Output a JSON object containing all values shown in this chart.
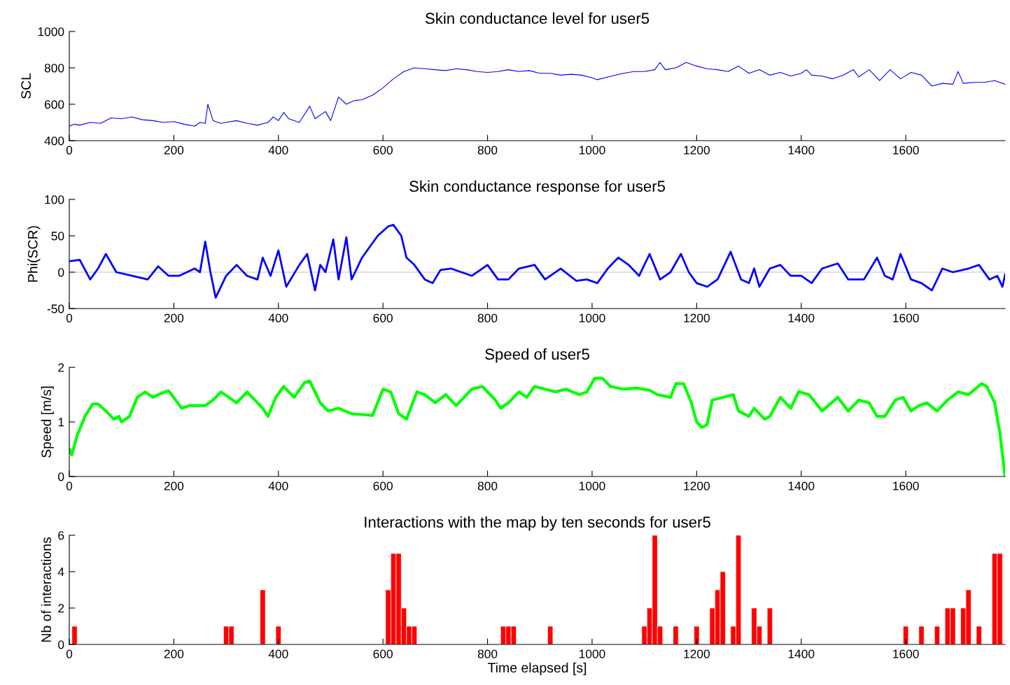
{
  "chart_data": [
    {
      "type": "line",
      "title": "Skin conductance level for user5",
      "ylabel": "SCL",
      "xlim": [
        0,
        1790
      ],
      "xticks": [
        0,
        200,
        400,
        600,
        800,
        1000,
        1200,
        1400,
        1600
      ],
      "ylim": [
        400,
        1000
      ],
      "yticks": [
        400,
        600,
        800,
        1000
      ],
      "grid": false,
      "legend": false,
      "marker": "none",
      "line_style": "solid",
      "series": [
        {
          "color": "#0000ff",
          "x": [
            0,
            10,
            20,
            40,
            60,
            80,
            100,
            120,
            140,
            160,
            180,
            200,
            220,
            240,
            250,
            260,
            265,
            275,
            290,
            300,
            320,
            340,
            360,
            380,
            390,
            400,
            410,
            420,
            440,
            460,
            470,
            490,
            500,
            515,
            530,
            545,
            560,
            580,
            600,
            620,
            640,
            660,
            680,
            700,
            720,
            740,
            760,
            780,
            800,
            820,
            840,
            860,
            880,
            900,
            920,
            940,
            960,
            980,
            1000,
            1010,
            1030,
            1060,
            1080,
            1100,
            1120,
            1130,
            1140,
            1160,
            1180,
            1200,
            1220,
            1240,
            1260,
            1280,
            1300,
            1320,
            1340,
            1360,
            1380,
            1400,
            1410,
            1420,
            1440,
            1460,
            1480,
            1500,
            1510,
            1530,
            1550,
            1570,
            1590,
            1610,
            1630,
            1650,
            1670,
            1690,
            1700,
            1710,
            1730,
            1750,
            1770,
            1790
          ],
          "values": [
            480,
            490,
            485,
            500,
            495,
            525,
            520,
            530,
            515,
            510,
            500,
            505,
            490,
            480,
            500,
            495,
            600,
            510,
            495,
            500,
            510,
            495,
            485,
            500,
            530,
            510,
            555,
            520,
            500,
            590,
            520,
            560,
            510,
            640,
            600,
            620,
            625,
            650,
            690,
            740,
            780,
            800,
            795,
            790,
            785,
            795,
            790,
            780,
            775,
            780,
            790,
            780,
            785,
            770,
            770,
            760,
            765,
            760,
            745,
            735,
            750,
            770,
            780,
            780,
            790,
            830,
            790,
            800,
            830,
            810,
            795,
            790,
            780,
            810,
            770,
            790,
            760,
            775,
            755,
            770,
            790,
            760,
            755,
            740,
            760,
            790,
            750,
            790,
            730,
            790,
            740,
            775,
            760,
            700,
            715,
            710,
            780,
            715,
            720,
            720,
            730,
            710
          ]
        }
      ]
    },
    {
      "type": "line",
      "title": "Skin conductance response for user5",
      "ylabel": "Phi(SCR)",
      "xlim": [
        0,
        1790
      ],
      "xticks": [
        0,
        200,
        400,
        600,
        800,
        1000,
        1200,
        1400,
        1600
      ],
      "ylim": [
        -50,
        100
      ],
      "yticks": [
        -50,
        0,
        50,
        100
      ],
      "grid": false,
      "legend": false,
      "marker": "none",
      "line_style": "solid",
      "ref_lines": [
        {
          "axis": "y",
          "value": 0,
          "color": "#c0c0c0"
        }
      ],
      "series": [
        {
          "color": "#0000ff",
          "x": [
            0,
            20,
            40,
            55,
            70,
            90,
            120,
            150,
            170,
            190,
            210,
            240,
            250,
            260,
            270,
            280,
            300,
            320,
            340,
            360,
            370,
            385,
            400,
            415,
            440,
            455,
            470,
            480,
            490,
            505,
            515,
            530,
            540,
            560,
            570,
            590,
            610,
            620,
            635,
            645,
            660,
            680,
            695,
            710,
            730,
            750,
            770,
            800,
            820,
            840,
            860,
            890,
            910,
            940,
            970,
            990,
            1010,
            1030,
            1050,
            1070,
            1090,
            1110,
            1130,
            1150,
            1170,
            1185,
            1200,
            1220,
            1240,
            1265,
            1285,
            1300,
            1310,
            1320,
            1340,
            1360,
            1380,
            1400,
            1420,
            1440,
            1470,
            1490,
            1520,
            1545,
            1560,
            1575,
            1590,
            1610,
            1630,
            1650,
            1670,
            1690,
            1720,
            1740,
            1760,
            1775,
            1785,
            1790
          ],
          "values": [
            15,
            17,
            -10,
            5,
            25,
            0,
            -5,
            -10,
            8,
            -5,
            -5,
            5,
            0,
            42,
            0,
            -35,
            -5,
            10,
            -5,
            -10,
            20,
            -5,
            30,
            -20,
            10,
            25,
            -25,
            10,
            0,
            45,
            -10,
            48,
            -10,
            20,
            30,
            50,
            63,
            65,
            50,
            20,
            10,
            -10,
            -15,
            3,
            5,
            0,
            -5,
            10,
            -10,
            -10,
            5,
            10,
            -10,
            5,
            -12,
            -10,
            -15,
            5,
            20,
            10,
            -5,
            25,
            -10,
            0,
            25,
            0,
            -15,
            -20,
            -10,
            28,
            -10,
            -15,
            5,
            -20,
            5,
            10,
            -5,
            -5,
            -15,
            5,
            12,
            -10,
            -10,
            20,
            -5,
            -10,
            25,
            -10,
            -15,
            -25,
            5,
            0,
            5,
            10,
            -10,
            -5,
            -20,
            -3
          ]
        }
      ]
    },
    {
      "type": "line",
      "title": "Speed of user5",
      "ylabel": "Speed [m/s]",
      "xlim": [
        0,
        1790
      ],
      "xticks": [
        0,
        200,
        400,
        600,
        800,
        1000,
        1200,
        1400,
        1600
      ],
      "ylim": [
        0,
        2
      ],
      "yticks": [
        0,
        1,
        2
      ],
      "grid": false,
      "legend": false,
      "marker": "none",
      "line_style": "solid",
      "series": [
        {
          "color": "#00ff00",
          "x": [
            0,
            5,
            15,
            30,
            45,
            55,
            70,
            85,
            95,
            100,
            115,
            130,
            145,
            160,
            175,
            190,
            205,
            215,
            230,
            260,
            275,
            290,
            305,
            320,
            340,
            370,
            380,
            395,
            410,
            430,
            450,
            460,
            480,
            495,
            515,
            540,
            580,
            600,
            615,
            630,
            645,
            665,
            680,
            700,
            720,
            740,
            770,
            790,
            815,
            825,
            840,
            860,
            875,
            890,
            910,
            930,
            950,
            975,
            990,
            1005,
            1020,
            1035,
            1060,
            1085,
            1110,
            1125,
            1150,
            1160,
            1175,
            1190,
            1200,
            1210,
            1220,
            1230,
            1250,
            1270,
            1280,
            1300,
            1310,
            1330,
            1340,
            1360,
            1380,
            1395,
            1415,
            1440,
            1470,
            1490,
            1510,
            1530,
            1545,
            1560,
            1580,
            1595,
            1610,
            1625,
            1640,
            1660,
            1680,
            1700,
            1720,
            1745,
            1755,
            1770,
            1780,
            1790
          ],
          "values": [
            0.5,
            0.4,
            0.75,
            1.1,
            1.33,
            1.33,
            1.2,
            1.05,
            1.1,
            1.0,
            1.1,
            1.45,
            1.55,
            1.45,
            1.52,
            1.57,
            1.38,
            1.25,
            1.3,
            1.3,
            1.4,
            1.55,
            1.45,
            1.35,
            1.55,
            1.25,
            1.1,
            1.45,
            1.65,
            1.45,
            1.72,
            1.75,
            1.35,
            1.2,
            1.25,
            1.15,
            1.12,
            1.6,
            1.55,
            1.15,
            1.05,
            1.55,
            1.5,
            1.35,
            1.5,
            1.3,
            1.6,
            1.65,
            1.4,
            1.25,
            1.35,
            1.55,
            1.45,
            1.65,
            1.6,
            1.55,
            1.6,
            1.5,
            1.55,
            1.8,
            1.8,
            1.65,
            1.6,
            1.62,
            1.58,
            1.5,
            1.45,
            1.7,
            1.7,
            1.35,
            1.0,
            0.9,
            0.95,
            1.4,
            1.45,
            1.5,
            1.2,
            1.1,
            1.25,
            1.05,
            1.1,
            1.45,
            1.25,
            1.55,
            1.5,
            1.2,
            1.45,
            1.2,
            1.4,
            1.35,
            1.1,
            1.1,
            1.4,
            1.45,
            1.2,
            1.3,
            1.35,
            1.2,
            1.4,
            1.55,
            1.5,
            1.7,
            1.65,
            1.35,
            0.8,
            0.0
          ]
        }
      ]
    },
    {
      "type": "bar",
      "title": "Interactions with the map by ten seconds for user5",
      "xlabel": "Time elapsed [s]",
      "ylabel": "Nb of interactions",
      "xlim": [
        0,
        1790
      ],
      "xticks": [
        0,
        200,
        400,
        600,
        800,
        1000,
        1200,
        1400,
        1600
      ],
      "ylim": [
        0,
        6
      ],
      "yticks": [
        0,
        2,
        4,
        6
      ],
      "grid": false,
      "legend": false,
      "series": [
        {
          "color": "#ff0000",
          "x": [
            10,
            300,
            310,
            370,
            400,
            610,
            620,
            630,
            640,
            650,
            660,
            830,
            840,
            850,
            920,
            1100,
            1110,
            1120,
            1130,
            1160,
            1200,
            1230,
            1240,
            1250,
            1270,
            1280,
            1310,
            1320,
            1340,
            1600,
            1630,
            1660,
            1680,
            1690,
            1710,
            1720,
            1740,
            1770,
            1780
          ],
          "values": [
            1,
            1,
            1,
            3,
            1,
            3,
            5,
            5,
            2,
            1,
            1,
            1,
            1,
            1,
            1,
            1,
            2,
            6,
            1,
            1,
            1,
            2,
            3,
            4,
            1,
            6,
            2,
            1,
            2,
            1,
            1,
            1,
            2,
            2,
            2,
            3,
            1,
            5,
            5
          ]
        }
      ]
    }
  ]
}
